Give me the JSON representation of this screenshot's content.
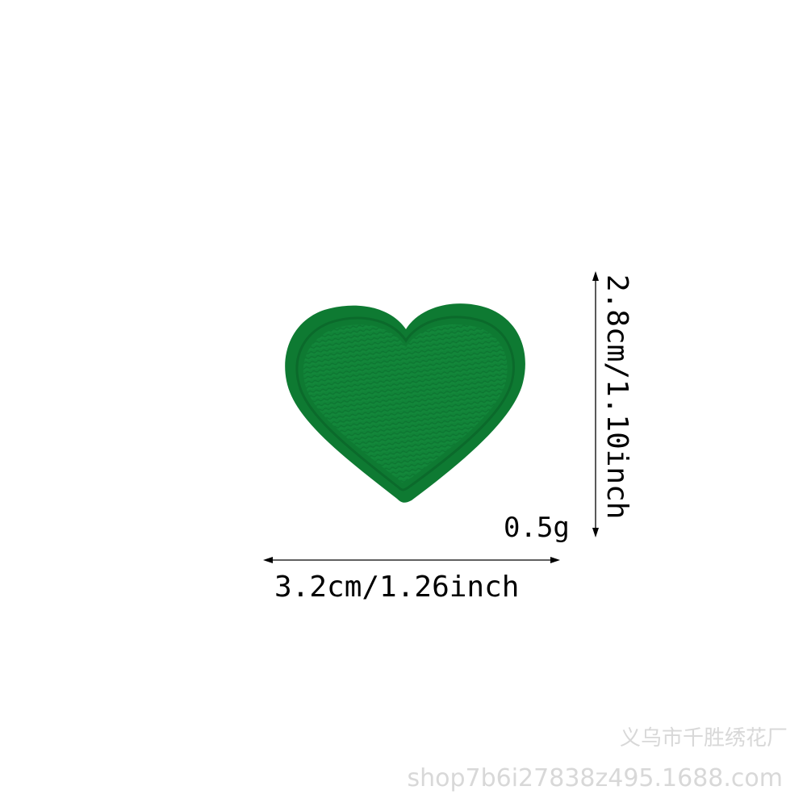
{
  "product": {
    "name": "green-heart-embroidered-patch",
    "colors": {
      "outer_border": "#0e7a32",
      "inner_fill": "#138a3c",
      "stitch_line": "#0b6a2b",
      "shadow": "#0a5a24"
    }
  },
  "dimensions": {
    "width_label": "3.2cm/1.26inch",
    "height_label": "2.8cm/1.10inch",
    "weight_label": "0.5g"
  },
  "watermark": {
    "line1": "义乌市千胜绣花厂",
    "line2": "shop7b6i27838z495.1688.com"
  }
}
